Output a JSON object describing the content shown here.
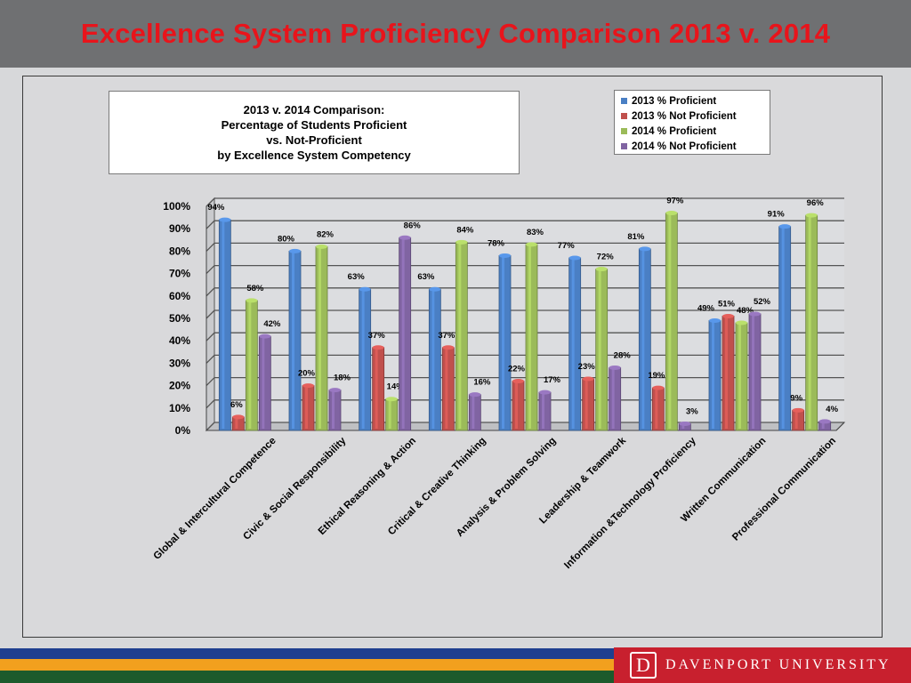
{
  "header": {
    "title": "Excellence System Proficiency Comparison 2013 v. 2014"
  },
  "subtitle_lines": [
    "2013 v. 2014 Comparison:",
    "Percentage of Students Proficient",
    "vs. Not-Proficient",
    "by Excellence System Competency"
  ],
  "footer": {
    "brand_logo_letter": "D",
    "brand_text": "DAVENPORT UNIVERSITY"
  },
  "colors": {
    "title": "#e8141b",
    "stripe_blue": "#1f3f8f",
    "stripe_orange": "#f2a01e",
    "stripe_green": "#1c5a2c",
    "brand_red": "#c8202e"
  },
  "chart_data": {
    "type": "bar",
    "categories": [
      "Global & Intercultural Competence",
      "Civic & Social Responsibility",
      "Ethical Reasoning & Action",
      "Critical & Creative Thinking",
      "Analysis & Problem Solving",
      "Leadership & Teamwork",
      "Information &Technology Proficiency",
      "Written Communication",
      "Professional Communication"
    ],
    "series": [
      {
        "name": "2013 % Proficient",
        "color": "#4a7fc4",
        "values": [
          94,
          80,
          63,
          63,
          78,
          77,
          81,
          49,
          91
        ]
      },
      {
        "name": "2013 % Not Proficient",
        "color": "#c0504d",
        "values": [
          6,
          20,
          37,
          37,
          22,
          23,
          19,
          51,
          9
        ]
      },
      {
        "name": "2014 % Proficient",
        "color": "#9bbb59",
        "values": [
          58,
          82,
          14,
          84,
          83,
          72,
          97,
          48,
          96
        ]
      },
      {
        "name": "2014 % Not Proficient",
        "color": "#8064a2",
        "values": [
          42,
          18,
          86,
          16,
          17,
          28,
          3,
          52,
          4
        ]
      }
    ],
    "ylim": [
      0,
      100
    ],
    "yticks": [
      "0%",
      "10%",
      "20%",
      "30%",
      "40%",
      "50%",
      "60%",
      "70%",
      "80%",
      "90%",
      "100%"
    ],
    "value_suffix": "%",
    "grid": true,
    "legend_position": "top-right"
  }
}
